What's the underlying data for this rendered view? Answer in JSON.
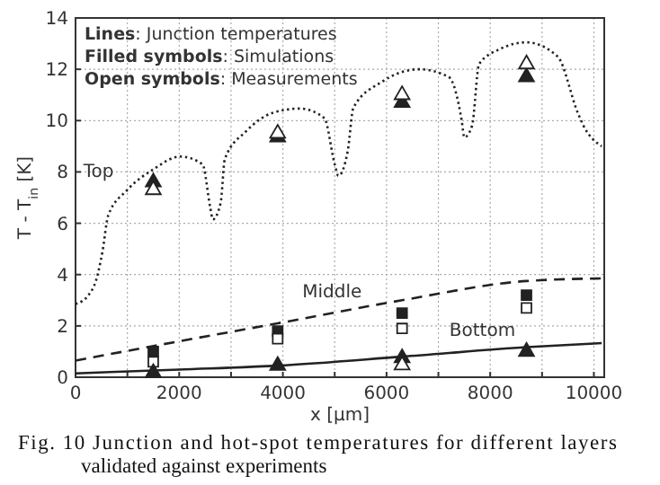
{
  "chart_data": {
    "type": "line",
    "xlabel": "x [µm]",
    "ylabel": "T - T$_{in}$ [K]",
    "xlim": [
      0,
      10200
    ],
    "ylim": [
      0,
      14
    ],
    "xticks": [
      0,
      {
        "value": 1000,
        "label": null
      },
      2000,
      {
        "value": 3000,
        "label": null
      },
      4000,
      {
        "value": 5000,
        "label": null
      },
      6000,
      {
        "value": 7000,
        "label": null
      },
      8000,
      {
        "value": 9000,
        "label": null
      },
      10000
    ],
    "yticks": [
      0,
      2,
      4,
      6,
      8,
      10,
      12,
      14
    ],
    "grid": true,
    "annotations": [
      "Lines: Junction temperatures",
      "Filled symbols: Simulations",
      "Open symbols: Measurements",
      "Fig. 10 Junction and hot-spot temperatures for different layers validated against experiments"
    ],
    "series": [
      {
        "name": "Top",
        "line_style": "dotted",
        "color": "#222222",
        "x": [
          0,
          250,
          400,
          520,
          630,
          1000,
          1500,
          2017,
          2450,
          2600,
          2650,
          2800,
          2880,
          3300,
          3800,
          4325,
          4800,
          5000,
          5070,
          5250,
          5360,
          5900,
          6630,
          7200,
          7450,
          7500,
          7650,
          7785,
          8200,
          8700,
          9300,
          9690,
          9800,
          10150
        ],
        "values": [
          2.85,
          3.2,
          3.8,
          4.9,
          6.3,
          7.3,
          8.1,
          8.6,
          8.3,
          6.6,
          6.15,
          6.8,
          8.5,
          9.6,
          10.3,
          10.47,
          10.1,
          8.3,
          7.85,
          8.8,
          10.5,
          11.5,
          12.0,
          11.7,
          10.0,
          9.35,
          9.8,
          12.2,
          12.8,
          13.05,
          12.5,
          10.3,
          9.8,
          9.0
        ]
      },
      {
        "name": "Middle",
        "line_style": "dashed",
        "color": "#222222",
        "x": [
          0,
          2000,
          3900,
          6300,
          8700,
          10150
        ],
        "values": [
          0.65,
          1.4,
          2.1,
          3.0,
          3.75,
          3.85
        ]
      },
      {
        "name": "Bottom",
        "line_style": "solid",
        "color": "#222222",
        "x": [
          0,
          2000,
          3900,
          6300,
          8700,
          10150
        ],
        "values": [
          0.15,
          0.3,
          0.45,
          0.8,
          1.17,
          1.33
        ]
      },
      {
        "type": "scatter",
        "marker": "triangle",
        "color": "#222222",
        "x": [
          1500,
          3900,
          6300,
          8700
        ],
        "values": [
          7.6,
          9.35,
          10.7,
          11.7
        ]
      },
      {
        "type": "scatter",
        "marker": "triangle",
        "color": "#ffffff",
        "x": [
          1500,
          3900,
          6300,
          8700
        ],
        "values": [
          7.3,
          9.5,
          11.0,
          12.2
        ]
      },
      {
        "type": "scatter",
        "marker": "square",
        "color": "#222222",
        "x": [
          1500,
          3900,
          6300,
          8700
        ],
        "values": [
          1.0,
          1.8,
          2.5,
          3.2
        ]
      },
      {
        "type": "scatter",
        "marker": "square",
        "color": "#ffffff",
        "x": [
          1500,
          3900,
          6300,
          8700
        ],
        "values": [
          0.6,
          1.5,
          1.9,
          2.7
        ]
      },
      {
        "type": "scatter",
        "marker": "triangle",
        "color": "#222222",
        "x": [
          1500,
          3900,
          6300,
          8700
        ],
        "values": [
          0.17,
          0.45,
          0.75,
          1.0
        ]
      },
      {
        "type": "scatter",
        "marker": "triangle",
        "color": "#ffffff",
        "x": [
          6300
        ],
        "values": [
          0.47
        ]
      }
    ]
  }
}
